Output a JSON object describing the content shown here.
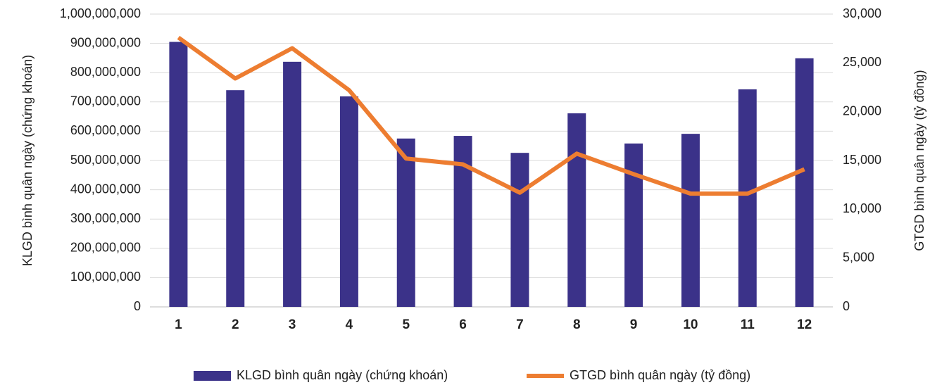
{
  "chart_data": {
    "type": "bar",
    "categories": [
      "1",
      "2",
      "3",
      "4",
      "5",
      "6",
      "7",
      "8",
      "9",
      "10",
      "11",
      "12"
    ],
    "ylabel": "KLGD bình quân ngày (chứng khoán)",
    "y2label": "GTGD bình quân ngày (tỷ đồng)",
    "ylim": [
      0,
      1000000000
    ],
    "yticks": [
      0,
      {
        "value": 100000000,
        "label": "100,000,000"
      },
      {
        "value": 200000000,
        "label": "200,000,000"
      },
      {
        "value": 300000000,
        "label": "300,000,000"
      },
      {
        "value": 400000000,
        "label": "400,000,000"
      },
      {
        "value": 500000000,
        "label": "500,000,000"
      },
      {
        "value": 600000000,
        "label": "600,000,000"
      },
      {
        "value": 700000000,
        "label": "700,000,000"
      },
      {
        "value": 800000000,
        "label": "800,000,000"
      },
      {
        "value": 900000000,
        "label": "900,000,000"
      },
      {
        "value": 1000000000,
        "label": "1,000,000,000"
      }
    ],
    "y2lim": [
      0,
      30000
    ],
    "y2ticks": [
      0,
      {
        "value": 5000,
        "label": "5,000"
      },
      {
        "value": 10000,
        "label": "10,000"
      },
      {
        "value": 15000,
        "label": "15,000"
      },
      {
        "value": 20000,
        "label": "20,000"
      },
      {
        "value": 25000,
        "label": "25,000"
      },
      {
        "value": 30000,
        "label": "30,000"
      }
    ],
    "grid": true,
    "legend": "bottom",
    "series": [
      {
        "name": "KLGD bình quân ngày (chứng khoán)",
        "color": "#3b3289",
        "values": [
          905000000,
          740000000,
          837000000,
          719000000,
          575000000,
          584000000,
          526000000,
          661000000,
          558000000,
          591000000,
          743000000,
          849000000
        ]
      },
      {
        "name": "GTGD bình quân ngày (tỷ đồng)",
        "color": "#ed7d31",
        "type": "line",
        "axis": "y2",
        "values": [
          27600,
          23400,
          26500,
          22200,
          15200,
          14600,
          11700,
          15700,
          13600,
          11600,
          11600,
          14100
        ]
      }
    ]
  }
}
